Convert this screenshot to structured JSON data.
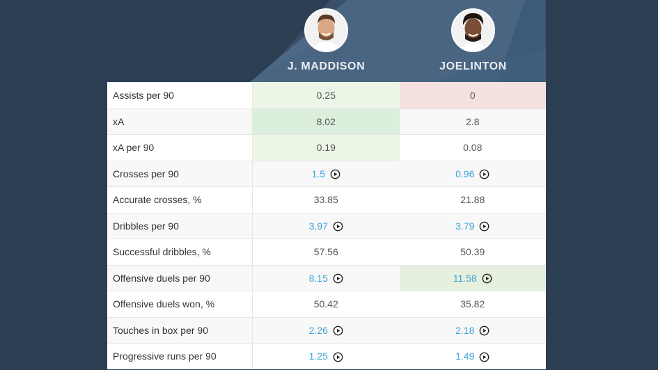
{
  "players": [
    {
      "name": "J. MADDISON",
      "avatar_icon": "player-photo-maddison"
    },
    {
      "name": "JOELINTON",
      "avatar_icon": "player-photo-joelinton"
    }
  ],
  "colors": {
    "page_bg": "#2c3e52",
    "header_panel": "#4a6582",
    "link_value": "#3aa3d6",
    "better_highlight": "#dcefdc",
    "worse_highlight": "#f6e1e1"
  },
  "rows": [
    {
      "label": "Assists per 90",
      "p1": "0.25",
      "p2": "0",
      "p1_link": false,
      "p2_link": false,
      "p1_hl": "green-light",
      "p2_hl": "red-light"
    },
    {
      "label": "xA",
      "p1": "8.02",
      "p2": "2.8",
      "p1_link": false,
      "p2_link": false,
      "p1_hl": "green-strong",
      "p2_hl": ""
    },
    {
      "label": "xA per 90",
      "p1": "0.19",
      "p2": "0.08",
      "p1_link": false,
      "p2_link": false,
      "p1_hl": "green-light",
      "p2_hl": ""
    },
    {
      "label": "Crosses per 90",
      "p1": "1.5",
      "p2": "0.96",
      "p1_link": true,
      "p2_link": true,
      "p1_hl": "",
      "p2_hl": ""
    },
    {
      "label": "Accurate crosses, %",
      "p1": "33.85",
      "p2": "21.88",
      "p1_link": false,
      "p2_link": false,
      "p1_hl": "",
      "p2_hl": ""
    },
    {
      "label": "Dribbles per 90",
      "p1": "3.97",
      "p2": "3.79",
      "p1_link": true,
      "p2_link": true,
      "p1_hl": "",
      "p2_hl": ""
    },
    {
      "label": "Successful dribbles, %",
      "p1": "57.56",
      "p2": "50.39",
      "p1_link": false,
      "p2_link": false,
      "p1_hl": "",
      "p2_hl": ""
    },
    {
      "label": "Offensive duels per 90",
      "p1": "8.15",
      "p2": "11.58",
      "p1_link": true,
      "p2_link": true,
      "p1_hl": "",
      "p2_hl": "green-mid"
    },
    {
      "label": "Offensive duels won, %",
      "p1": "50.42",
      "p2": "35.82",
      "p1_link": false,
      "p2_link": false,
      "p1_hl": "",
      "p2_hl": ""
    },
    {
      "label": "Touches in box per 90",
      "p1": "2.26",
      "p2": "2.18",
      "p1_link": true,
      "p2_link": true,
      "p1_hl": "",
      "p2_hl": ""
    },
    {
      "label": "Progressive runs per 90",
      "p1": "1.25",
      "p2": "1.49",
      "p1_link": true,
      "p2_link": true,
      "p1_hl": "",
      "p2_hl": ""
    }
  ]
}
